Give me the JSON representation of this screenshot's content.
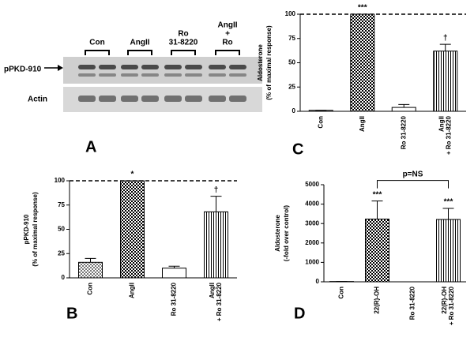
{
  "blot": {
    "panel_letter": "A",
    "band_labels": [
      "pPKD-910",
      "Actin"
    ],
    "lanes": [
      [
        "Con"
      ],
      [
        "AngII"
      ],
      [
        "Ro",
        "31-8220"
      ],
      [
        "AngII",
        "+",
        "Ro"
      ]
    ]
  },
  "chart_data": [
    {
      "type": "bar",
      "panel_letter": "B",
      "ylabel": [
        "pPKD-910",
        "(% of maximal response)"
      ],
      "categories": [
        [
          "Con"
        ],
        [
          "AngII"
        ],
        [
          "Ro 31-8220"
        ],
        [
          "AngII",
          "+ Ro 31-8220"
        ]
      ],
      "values": [
        16,
        100,
        10,
        68
      ],
      "errors": [
        4,
        0,
        2,
        16
      ],
      "significance": [
        null,
        "*",
        null,
        "†"
      ],
      "reference_line": 100,
      "ylim": [
        0,
        100
      ],
      "yticks": [
        0,
        25,
        50,
        75,
        100
      ]
    },
    {
      "type": "bar",
      "panel_letter": "C",
      "ylabel": [
        "Aldosterone",
        "(% of maximal response)"
      ],
      "categories": [
        [
          "Con"
        ],
        [
          "AngII"
        ],
        [
          "Ro 31-8220"
        ],
        [
          "AngII",
          "+ Ro 31-8220"
        ]
      ],
      "values": [
        1,
        100,
        4,
        62
      ],
      "errors": [
        0,
        0,
        3,
        7
      ],
      "significance": [
        null,
        "***",
        null,
        "†"
      ],
      "reference_line": 100,
      "ylim": [
        0,
        100
      ],
      "yticks": [
        0,
        25,
        50,
        75,
        100
      ]
    },
    {
      "type": "bar",
      "panel_letter": "D",
      "ylabel": [
        "Aldosterone",
        "(-fold over control)"
      ],
      "categories": [
        [
          "Con"
        ],
        [
          "22(R)-OH"
        ],
        [
          "Ro 31-8220"
        ],
        [
          "22(R)-OH",
          "+ Ro 31-8220"
        ]
      ],
      "values": [
        15,
        3230,
        0,
        3210
      ],
      "errors": [
        0,
        930,
        0,
        570
      ],
      "significance": [
        null,
        "***",
        null,
        "***"
      ],
      "comparison_label": "p=NS",
      "ylim": [
        0,
        5000
      ],
      "yticks": [
        0,
        1000,
        2000,
        3000,
        4000,
        5000
      ]
    }
  ]
}
